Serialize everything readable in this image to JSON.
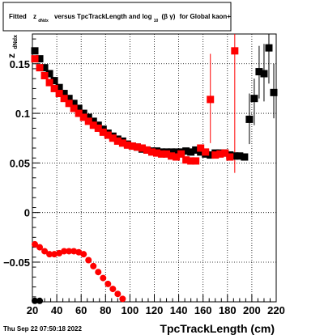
{
  "colors": {
    "series_black": "#000000",
    "series_red": "#ff0000"
  },
  "title": {
    "prefix": "Fitted",
    "z": "z",
    "z_sub": "dNdx",
    "middle": "versus TpcTrackLength and log",
    "log_sub": "10",
    "beta_gamma": "(β  γ)",
    "suffix": "for Global kaon+"
  },
  "timestamp": "Thu Sep 22 07:50:18 2022",
  "chart_data": {
    "type": "scatter",
    "xlabel": "TpcTrackLength (cm)",
    "ylabel": "z",
    "ylabel_sub": "dNdx",
    "xlim": [
      20,
      220
    ],
    "ylim": [
      -0.09,
      0.18
    ],
    "grid": true,
    "legend": "none",
    "x_ticks": [
      20,
      40,
      60,
      80,
      100,
      120,
      140,
      160,
      180,
      200,
      220
    ],
    "y_ticks": [
      {
        "v": 0.15,
        "label": "0.15"
      },
      {
        "v": 0.1,
        "label": "0.1"
      },
      {
        "v": 0.05,
        "label": "0.05"
      },
      {
        "v": 0,
        "label": "0"
      },
      {
        "v": -0.05,
        "label": "−0.05"
      }
    ],
    "series": [
      {
        "marker": "square",
        "color": "#000000",
        "points": [
          [
            22,
            0.163
          ],
          [
            26,
            0.155
          ],
          [
            30,
            0.146
          ],
          [
            34,
            0.14
          ],
          [
            38,
            0.133
          ],
          [
            42,
            0.126
          ],
          [
            46,
            0.12
          ],
          [
            50,
            0.115
          ],
          [
            54,
            0.11
          ],
          [
            58,
            0.105
          ],
          [
            62,
            0.1
          ],
          [
            66,
            0.096
          ],
          [
            70,
            0.092
          ],
          [
            74,
            0.088
          ],
          [
            78,
            0.084
          ],
          [
            82,
            0.08
          ],
          [
            86,
            0.077
          ],
          [
            90,
            0.074
          ],
          [
            94,
            0.072
          ],
          [
            98,
            0.069
          ],
          [
            102,
            0.067
          ],
          [
            106,
            0.066
          ],
          [
            110,
            0.064
          ],
          [
            114,
            0.063
          ],
          [
            118,
            0.062
          ],
          [
            122,
            0.062
          ],
          [
            126,
            0.061
          ],
          [
            130,
            0.061
          ],
          [
            134,
            0.061
          ],
          [
            138,
            0.061
          ],
          [
            142,
            0.061
          ],
          [
            146,
            0.062
          ],
          [
            150,
            0.061
          ],
          [
            154,
            0.063
          ],
          [
            158,
            0.061
          ],
          [
            162,
            0.059
          ],
          [
            166,
            0.058
          ],
          [
            170,
            0.06
          ],
          [
            174,
            0.06
          ],
          [
            178,
            0.06
          ],
          [
            182,
            0.058
          ],
          [
            186,
            0.057
          ],
          [
            190,
            0.057
          ],
          [
            194,
            0.056
          ],
          [
            198,
            0.094
          ],
          [
            202,
            0.115
          ],
          [
            206,
            0.142
          ],
          [
            210,
            0.14
          ],
          [
            214,
            0.166
          ],
          [
            218,
            0.121
          ]
        ],
        "errors": [
          [
            198,
            0.069,
            0.12
          ],
          [
            202,
            0.088,
            0.135
          ],
          [
            206,
            0.115,
            0.168
          ],
          [
            210,
            0.112,
            0.17
          ],
          [
            214,
            0.13,
            0.18
          ],
          [
            218,
            0.095,
            0.15
          ]
        ]
      },
      {
        "marker": "square",
        "color": "#ff0000",
        "points": [
          [
            22,
            0.155
          ],
          [
            26,
            0.146
          ],
          [
            30,
            0.138
          ],
          [
            34,
            0.131
          ],
          [
            38,
            0.125
          ],
          [
            42,
            0.12
          ],
          [
            46,
            0.115
          ],
          [
            50,
            0.11
          ],
          [
            54,
            0.105
          ],
          [
            58,
            0.1
          ],
          [
            62,
            0.096
          ],
          [
            66,
            0.092
          ],
          [
            70,
            0.088
          ],
          [
            74,
            0.085
          ],
          [
            78,
            0.081
          ],
          [
            82,
            0.078
          ],
          [
            86,
            0.075
          ],
          [
            90,
            0.072
          ],
          [
            94,
            0.07
          ],
          [
            98,
            0.068
          ],
          [
            102,
            0.067
          ],
          [
            106,
            0.066
          ],
          [
            110,
            0.065
          ],
          [
            114,
            0.063
          ],
          [
            118,
            0.061
          ],
          [
            122,
            0.06
          ],
          [
            126,
            0.059
          ],
          [
            130,
            0.059
          ],
          [
            134,
            0.057
          ],
          [
            138,
            0.056
          ],
          [
            142,
            0.059
          ],
          [
            146,
            0.053
          ],
          [
            150,
            0.052
          ],
          [
            154,
            0.052
          ],
          [
            158,
            0.065
          ],
          [
            162,
            0.061
          ],
          [
            166,
            0.114
          ],
          [
            170,
            0.058
          ],
          [
            174,
            0.059
          ],
          [
            178,
            0.06
          ],
          [
            182,
            0.056
          ],
          [
            186,
            0.163
          ]
        ],
        "errors": [
          [
            166,
            0.07,
            0.16
          ],
          [
            186,
            0.04,
            0.18
          ]
        ]
      },
      {
        "marker": "circle",
        "color": "#ff0000",
        "points": [
          [
            22,
            -0.032
          ],
          [
            26,
            -0.035
          ],
          [
            30,
            -0.039
          ],
          [
            34,
            -0.042
          ],
          [
            38,
            -0.042
          ],
          [
            42,
            -0.041
          ],
          [
            46,
            -0.039
          ],
          [
            50,
            -0.039
          ],
          [
            54,
            -0.039
          ],
          [
            58,
            -0.04
          ],
          [
            62,
            -0.042
          ],
          [
            66,
            -0.048
          ],
          [
            70,
            -0.054
          ],
          [
            74,
            -0.06
          ],
          [
            78,
            -0.066
          ],
          [
            82,
            -0.072
          ],
          [
            86,
            -0.077
          ],
          [
            90,
            -0.082
          ],
          [
            94,
            -0.087
          ]
        ],
        "errors": []
      },
      {
        "marker": "circle",
        "color": "#000000",
        "points": [
          [
            22,
            -0.089
          ],
          [
            26,
            -0.089
          ]
        ],
        "errors": []
      }
    ]
  }
}
